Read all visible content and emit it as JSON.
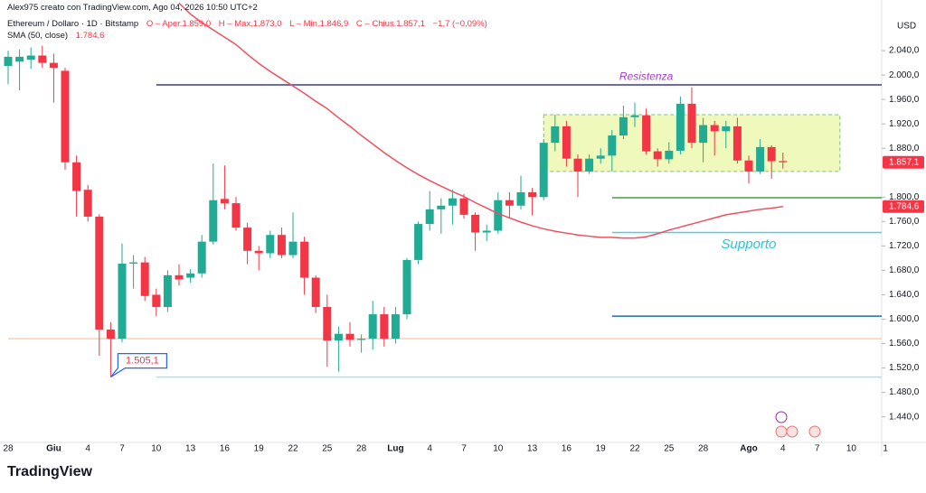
{
  "chart_data": {
    "type": "candlestick",
    "watermark": "Alex975 creato con TradingView.com, Ago 04, 2026 10:50 UTC+2",
    "symbol": "Ethereum / Dollaro · 1D · Bitstamp",
    "ohlc_texts": [
      "O – Aper.1.859,0",
      "H – Max.1.873,0",
      "L – Min.1.846,9",
      "C – Chius.1.857,1",
      "−1,7 (−0,09%)"
    ],
    "indicator": "SMA (50, close)",
    "indicator_value": "1.784,6",
    "currency": "USD",
    "brand": "TradingView",
    "up_color": "#22ab94",
    "down_color": "#f23645",
    "categories": [
      "28",
      null,
      null,
      null,
      "Giu",
      null,
      null,
      "4",
      null,
      null,
      "7",
      null,
      null,
      "10",
      null,
      null,
      "13",
      null,
      null,
      "16",
      null,
      null,
      "19",
      null,
      null,
      "22",
      null,
      null,
      "25",
      null,
      null,
      "28",
      null,
      null,
      "Lug",
      null,
      null,
      "4",
      null,
      null,
      "7",
      null,
      null,
      "10",
      null,
      null,
      "13",
      null,
      null,
      "16",
      null,
      null,
      "19",
      null,
      null,
      "22",
      null,
      null,
      "25",
      null,
      null,
      "28",
      null,
      null,
      null,
      "Ago",
      null,
      null,
      "4",
      null,
      null,
      "7",
      null,
      null,
      "10",
      null,
      null,
      "1"
    ],
    "open": [
      2015,
      2022,
      2025,
      2032,
      2020,
      2007,
      1857,
      1812,
      1768,
      1583,
      1568,
      1691,
      1693,
      1640,
      1620,
      1672,
      1668,
      1675,
      1727,
      1797,
      1790,
      1750,
      1712,
      1708,
      1738,
      1705,
      1727,
      1668,
      1620,
      1565,
      1576,
      1566,
      1568,
      1608,
      1568,
      1608,
      1697,
      1756,
      1780,
      1786,
      1798,
      1771,
      1742,
      1745,
      1795,
      1786,
      1808,
      1800,
      1889,
      1916,
      1863,
      1842,
      1863,
      1868,
      1901,
      1931,
      1934,
      1875,
      1862,
      1876,
      1953,
      1889,
      1918,
      1908,
      1916,
      1860,
      1842,
      1882,
      1859.0,
      null,
      null,
      null,
      null,
      null,
      null,
      null,
      null,
      null
    ],
    "high": [
      2040,
      2042,
      2045,
      2048,
      2035,
      2012,
      1868,
      1820,
      1772,
      1595,
      1724,
      1705,
      1702,
      1650,
      1680,
      1690,
      1682,
      1738,
      1855,
      1852,
      1800,
      1758,
      1720,
      1745,
      1750,
      1775,
      1735,
      1672,
      1640,
      1588,
      1595,
      1575,
      1630,
      1620,
      1620,
      1700,
      1760,
      1810,
      1798,
      1812,
      1805,
      1775,
      1755,
      1808,
      1808,
      1835,
      1815,
      1895,
      1935,
      1925,
      1870,
      1870,
      1880,
      1910,
      1950,
      1955,
      1945,
      1880,
      1890,
      1965,
      1980,
      1930,
      1925,
      1925,
      1930,
      1868,
      1895,
      1885,
      1873.0,
      null,
      null,
      null,
      null,
      null,
      null,
      null,
      null,
      null
    ],
    "low": [
      1985,
      1975,
      2010,
      2012,
      1955,
      1845,
      1768,
      1760,
      1540,
      1505.1,
      1562,
      1650,
      1630,
      1605,
      1612,
      1655,
      1660,
      1668,
      1722,
      1780,
      1745,
      1690,
      1680,
      1700,
      1700,
      1700,
      1640,
      1610,
      1522,
      1514,
      1555,
      1545,
      1550,
      1555,
      1560,
      1600,
      1690,
      1745,
      1740,
      1755,
      1765,
      1712,
      1728,
      1740,
      1765,
      1780,
      1770,
      1795,
      1875,
      1850,
      1800,
      1838,
      1855,
      1842,
      1895,
      1915,
      1870,
      1850,
      1855,
      1870,
      1880,
      1857,
      1868,
      1880,
      1855,
      1822,
      1838,
      1830,
      1846.9,
      null,
      null,
      null,
      null,
      null,
      null,
      null,
      null,
      null
    ],
    "close": [
      2030,
      2030,
      2032,
      2020,
      2012,
      1857,
      1810,
      1768,
      1583,
      1568,
      1691,
      1693,
      1638,
      1620,
      1672,
      1665,
      1675,
      1727,
      1795,
      1790,
      1750,
      1712,
      1708,
      1738,
      1705,
      1727,
      1668,
      1620,
      1565,
      1576,
      1566,
      1568,
      1608,
      1568,
      1608,
      1697,
      1756,
      1780,
      1786,
      1798,
      1771,
      1742,
      1745,
      1795,
      1786,
      1808,
      1800,
      1889,
      1916,
      1863,
      1842,
      1863,
      1868,
      1901,
      1931,
      1934,
      1875,
      1862,
      1876,
      1953,
      1889,
      1918,
      1908,
      1916,
      1860,
      1842,
      1882,
      1858.8,
      1857.1,
      null,
      null,
      null,
      null,
      null,
      null,
      null,
      null,
      null
    ],
    "series": [
      {
        "name": "SMA (50, close)",
        "color": "#ef5060",
        "values": [
          null,
          null,
          null,
          null,
          null,
          null,
          null,
          null,
          null,
          null,
          null,
          null,
          null,
          null,
          null,
          2118,
          2100,
          2086,
          2074,
          2062,
          2050,
          2034,
          2019,
          2006,
          1994,
          1982,
          1970,
          1957,
          1945,
          1930,
          1916,
          1901,
          1887,
          1873,
          1860,
          1848,
          1837,
          1827,
          1818,
          1809,
          1801,
          1791,
          1782,
          1773,
          1766,
          1759,
          1753,
          1748,
          1744,
          1741,
          1738,
          1736,
          1734,
          1734,
          1733,
          1733,
          1735,
          1740,
          1746,
          1751,
          1756,
          1761,
          1766,
          1771,
          1774,
          1777,
          1780,
          1782,
          1784.6,
          null,
          null,
          null,
          null,
          null,
          null,
          null,
          null,
          null
        ]
      }
    ],
    "ylim": [
      1398,
      2123
    ],
    "yticks": [
      {
        "value": 2040,
        "label": "2.040,0"
      },
      {
        "value": 2000,
        "label": "2.000,0"
      },
      {
        "value": 1960,
        "label": "1.960,0"
      },
      {
        "value": 1920,
        "label": "1.920,0"
      },
      {
        "value": 1880,
        "label": "1.880,0"
      },
      {
        "value": 1800,
        "label": "1.800,0"
      },
      {
        "value": 1760,
        "label": "1.760,0"
      },
      {
        "value": 1720,
        "label": "1.720,0"
      },
      {
        "value": 1680,
        "label": "1.680,0"
      },
      {
        "value": 1640,
        "label": "1.640,0"
      },
      {
        "value": 1600,
        "label": "1.600,0"
      },
      {
        "value": 1560,
        "label": "1.560,0"
      },
      {
        "value": 1520,
        "label": "1.520,0"
      },
      {
        "value": 1480,
        "label": "1.480,0"
      },
      {
        "value": 1440,
        "label": "1.440,0"
      }
    ],
    "price_tags": [
      {
        "value": 1857.1,
        "label": "1.857,1",
        "color": "#f23645"
      },
      {
        "value": 1784.6,
        "label": "1.784,6",
        "color": "#f23645"
      }
    ],
    "hlines": [
      {
        "value": 1984,
        "from": 13,
        "color": "#3c3c9c"
      },
      {
        "value": 1799,
        "from": 53,
        "color": "#43a047"
      },
      {
        "value": 1742,
        "from": 53,
        "color": "#4dd0e1"
      },
      {
        "value": 1605,
        "from": 53,
        "color": "#1e6bb8"
      },
      {
        "value": 1505.1,
        "from": 13,
        "color": "#a6e3ef"
      },
      {
        "value": 1568,
        "from": 0,
        "color": "#f8d2b0"
      }
    ],
    "annotations": [
      {
        "text": "Resistenza",
        "at": 56,
        "value": 1997,
        "color": "#a23ecb",
        "size": 12
      },
      {
        "text": "Supporto",
        "at": 65,
        "value": 1722,
        "color": "#26c6da",
        "size": 15
      }
    ],
    "rectangle": {
      "from": 47,
      "to": 73,
      "top": 1935,
      "bottom": 1842,
      "color": "#e8f7a0"
    },
    "callout": {
      "at": 9,
      "value": 1505.1,
      "label": "1.505,1"
    }
  }
}
